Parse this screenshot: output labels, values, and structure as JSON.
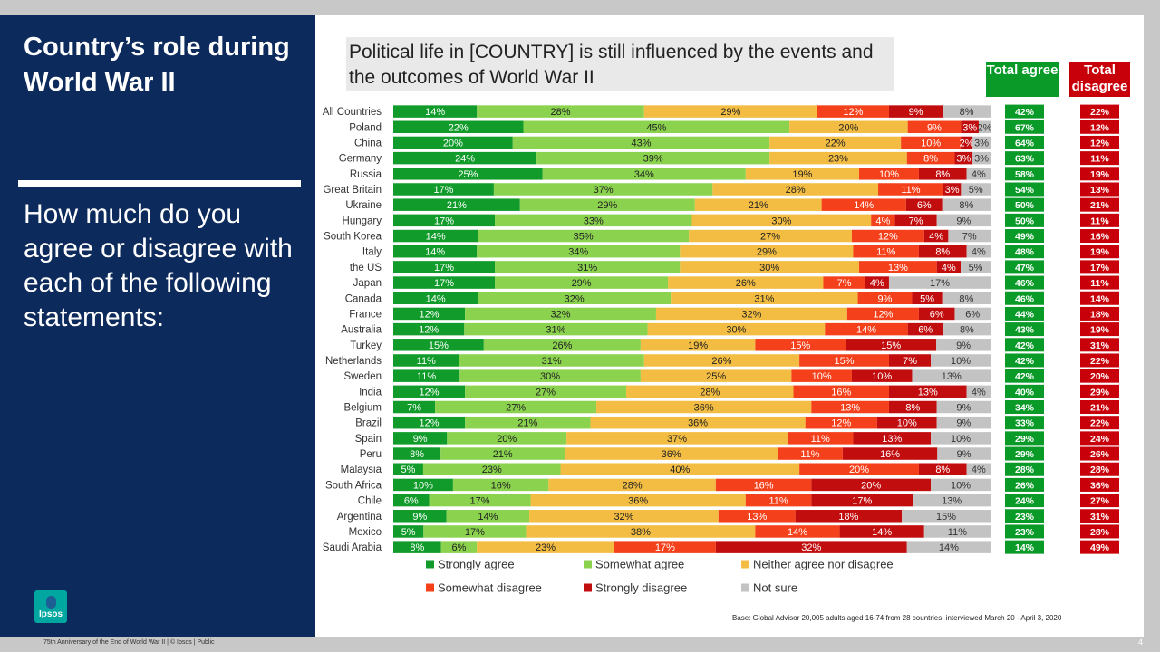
{
  "sidebar": {
    "title": "Country’s role during World War II",
    "question": "How much do you agree or disagree with each of the following statements:",
    "logo_text": "Ipsos"
  },
  "statement": "Political life in [COUNTRY] is still influenced by the events and the outcomes of World War II",
  "headers": {
    "total_agree": "Total agree",
    "total_disagree": "Total disagree"
  },
  "colors": {
    "strongly_agree": "#119b2b",
    "somewhat_agree": "#8bd24f",
    "neither": "#f2bd42",
    "somewhat_disagree": "#f5411b",
    "strongly_disagree": "#c20d0e",
    "not_sure": "#c3c3c3",
    "total_agree_bg": "#0a9a28",
    "total_disagree_bg": "#c8000a"
  },
  "chart_data": {
    "type": "bar",
    "orientation": "horizontal-stacked-100",
    "categories": [
      "All Countries",
      "Poland",
      "China",
      "Germany",
      "Russia",
      "Great Britain",
      "Ukraine",
      "Hungary",
      "South Korea",
      "Italy",
      "the US",
      "Japan",
      "Canada",
      "France",
      "Australia",
      "Turkey",
      "Netherlands",
      "Sweden",
      "India",
      "Belgium",
      "Brazil",
      "Spain",
      "Peru",
      "Malaysia",
      "South Africa",
      "Chile",
      "Argentina",
      "Mexico",
      "Saudi Arabia"
    ],
    "series": [
      {
        "name": "Strongly agree",
        "key": "strongly_agree",
        "values": [
          14,
          22,
          20,
          24,
          25,
          17,
          21,
          17,
          14,
          14,
          17,
          17,
          14,
          12,
          12,
          15,
          11,
          11,
          12,
          7,
          12,
          9,
          8,
          5,
          10,
          6,
          9,
          5,
          8
        ]
      },
      {
        "name": "Somewhat agree",
        "key": "somewhat_agree",
        "values": [
          28,
          45,
          43,
          39,
          34,
          37,
          29,
          33,
          35,
          34,
          31,
          29,
          32,
          32,
          31,
          26,
          31,
          30,
          27,
          27,
          21,
          20,
          21,
          23,
          16,
          17,
          14,
          17,
          6
        ]
      },
      {
        "name": "Neither agree nor disagree",
        "key": "neither",
        "values": [
          29,
          20,
          22,
          23,
          19,
          28,
          21,
          30,
          27,
          29,
          30,
          26,
          31,
          32,
          30,
          19,
          26,
          25,
          28,
          36,
          36,
          37,
          36,
          40,
          28,
          36,
          32,
          38,
          23
        ]
      },
      {
        "name": "Somewhat disagree",
        "key": "somewhat_disagree",
        "values": [
          12,
          9,
          10,
          8,
          10,
          11,
          14,
          4,
          12,
          11,
          13,
          7,
          9,
          12,
          14,
          15,
          15,
          10,
          16,
          13,
          12,
          11,
          11,
          20,
          16,
          11,
          13,
          14,
          17
        ]
      },
      {
        "name": "Strongly disagree",
        "key": "strongly_disagree",
        "values": [
          9,
          3,
          2,
          3,
          8,
          3,
          6,
          7,
          4,
          8,
          4,
          4,
          5,
          6,
          6,
          15,
          7,
          10,
          13,
          8,
          10,
          13,
          16,
          8,
          20,
          17,
          18,
          14,
          32
        ]
      },
      {
        "name": "Not sure",
        "key": "not_sure",
        "values": [
          8,
          2,
          3,
          3,
          4,
          5,
          8,
          9,
          7,
          4,
          5,
          17,
          8,
          6,
          8,
          9,
          10,
          13,
          4,
          9,
          9,
          10,
          9,
          4,
          10,
          13,
          15,
          11,
          14
        ]
      }
    ],
    "total_agree": [
      42,
      67,
      64,
      63,
      58,
      54,
      50,
      50,
      49,
      48,
      47,
      46,
      46,
      44,
      43,
      42,
      42,
      42,
      40,
      34,
      33,
      29,
      29,
      28,
      26,
      24,
      23,
      23,
      14
    ],
    "total_disagree": [
      22,
      12,
      12,
      11,
      19,
      13,
      21,
      11,
      16,
      19,
      17,
      11,
      14,
      18,
      19,
      31,
      22,
      20,
      29,
      21,
      22,
      24,
      26,
      28,
      36,
      27,
      31,
      28,
      49
    ],
    "unit": "%",
    "legend_position": "bottom"
  },
  "footnote": "Base: Global Advisor 20,005 adults aged 16-74 from 28 countries, interviewed March 20 - April 3, 2020",
  "footer": "75th Anniversary of the End of World War II | © Ipsos | Public |",
  "page_number": "4"
}
